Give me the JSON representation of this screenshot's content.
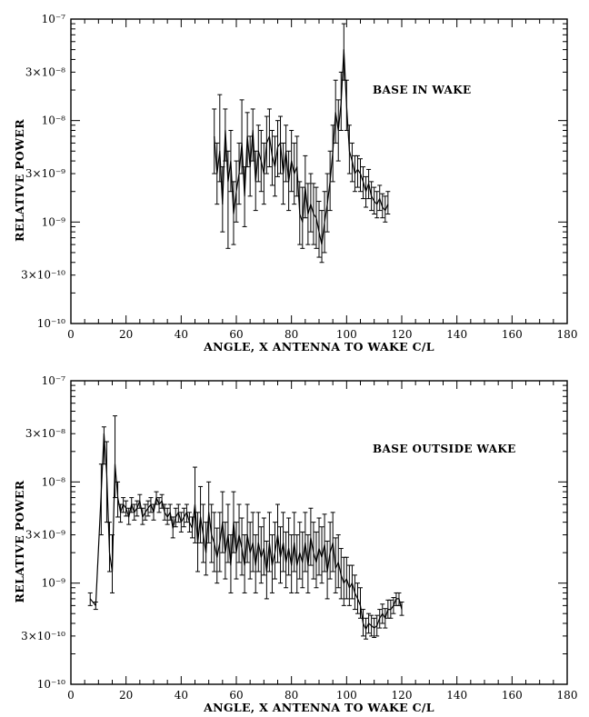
{
  "chart_data": [
    {
      "type": "line",
      "annotation": "BASE IN WAKE",
      "xlabel": "ANGLE, X ANTENNA TO WAKE C/L",
      "ylabel": "RELATIVE POWER",
      "xlim": [
        0,
        180
      ],
      "ylim": [
        1e-10,
        1e-07
      ],
      "yscale": "log",
      "x_ticks": [
        0,
        20,
        40,
        60,
        80,
        100,
        120,
        140,
        160,
        180
      ],
      "x_tick_labels": [
        "0",
        "20",
        "40",
        "60",
        "80",
        "100",
        "120",
        "140",
        "160",
        "180"
      ],
      "y_ticks": [
        1e-10,
        3e-10,
        1e-09,
        3e-09,
        1e-08,
        3e-08,
        1e-07
      ],
      "y_tick_labels": [
        "10⁻¹⁰",
        "3×10⁻¹⁰",
        "10⁻⁹",
        "3×10⁻⁹",
        "10⁻⁸",
        "3×10⁻⁸",
        "10⁻⁷"
      ],
      "grid": false,
      "series": [
        {
          "x": [
            52,
            53,
            54,
            55,
            56,
            57,
            58,
            59,
            60,
            61,
            62,
            63,
            64,
            65,
            66,
            67,
            68,
            69,
            70,
            71,
            72,
            73,
            74,
            75,
            76,
            77,
            78,
            79,
            80,
            81,
            82,
            83,
            84,
            85,
            86,
            87,
            88,
            89,
            90,
            91,
            92,
            93,
            94,
            95,
            96,
            97,
            98,
            99,
            100,
            101,
            102,
            103,
            104,
            105,
            106,
            107,
            108,
            109,
            110,
            111,
            112,
            113,
            114,
            115
          ],
          "y": [
            7e-09,
            3e-09,
            5e-09,
            1.5e-09,
            8e-09,
            2.5e-09,
            4e-09,
            1.2e-09,
            2e-09,
            3e-09,
            6e-09,
            1.8e-09,
            7e-09,
            3.5e-09,
            8e-09,
            2.5e-09,
            5e-09,
            4e-09,
            3e-09,
            6e-09,
            7e-09,
            4.5e-09,
            3.5e-09,
            5.5e-09,
            6e-09,
            3e-09,
            5e-09,
            2.5e-09,
            4e-09,
            3e-09,
            3.5e-09,
            1.2e-09,
            1e-09,
            2.2e-09,
            1.2e-09,
            1.5e-09,
            1.2e-09,
            1.1e-09,
            8e-10,
            6e-10,
            1e-09,
            1.5e-09,
            2.5e-09,
            5e-09,
            1.2e-08,
            8e-09,
            1.5e-08,
            5e-08,
            1.4e-08,
            5e-09,
            4e-09,
            3e-09,
            3.3e-09,
            3e-09,
            2.5e-09,
            2e-09,
            2.4e-09,
            1.8e-09,
            1.6e-09,
            1.5e-09,
            1.7e-09,
            1.4e-09,
            1.3e-09,
            1.5e-09
          ],
          "y_low": [
            3e-09,
            1.5e-09,
            2.5e-09,
            8e-10,
            4e-09,
            5.5e-10,
            2e-09,
            6e-10,
            1e-09,
            1.5e-09,
            3e-09,
            9e-10,
            3.5e-09,
            1.8e-09,
            4e-09,
            1.3e-09,
            2.5e-09,
            2e-09,
            1.5e-09,
            3e-09,
            3.5e-09,
            2.3e-09,
            1.8e-09,
            2.8e-09,
            3e-09,
            1.5e-09,
            2.5e-09,
            1.3e-09,
            2e-09,
            1.5e-09,
            1.8e-09,
            6e-10,
            5.5e-10,
            1.1e-09,
            6e-10,
            8e-10,
            6e-10,
            5.5e-10,
            4.5e-10,
            4e-10,
            5e-10,
            8e-10,
            1.3e-09,
            2.5e-09,
            6e-09,
            4e-09,
            8e-09,
            2.5e-08,
            8e-09,
            3e-09,
            2.5e-09,
            2e-09,
            2.2e-09,
            2e-09,
            1.7e-09,
            1.4e-09,
            1.7e-09,
            1.3e-09,
            1.2e-09,
            1.1e-09,
            1.3e-09,
            1.1e-09,
            1e-09,
            1.2e-09
          ],
          "y_high": [
            1.3e-08,
            6e-09,
            1.8e-08,
            3.5e-09,
            1.3e-08,
            5e-09,
            8e-09,
            2.5e-09,
            4e-09,
            6e-09,
            1.6e-08,
            3.5e-09,
            1.2e-08,
            7e-09,
            1.3e-08,
            5e-09,
            9e-09,
            8e-09,
            6e-09,
            1.1e-08,
            1.3e-08,
            8e-09,
            7e-09,
            1e-08,
            1.1e-08,
            6e-09,
            9e-09,
            5e-09,
            8e-09,
            6e-09,
            7e-09,
            2.5e-09,
            2.2e-09,
            4.5e-09,
            2.4e-09,
            3e-09,
            2.4e-09,
            2.2e-09,
            1.6e-09,
            1.3e-09,
            2e-09,
            3e-09,
            5e-09,
            9e-09,
            2.5e-08,
            1.6e-08,
            3e-08,
            9e-08,
            2.5e-08,
            9e-09,
            6e-09,
            4.5e-09,
            4.5e-09,
            4.2e-09,
            3.5e-09,
            2.8e-09,
            3.3e-09,
            2.5e-09,
            2.2e-09,
            2e-09,
            2.3e-09,
            1.9e-09,
            1.8e-09,
            2e-09
          ]
        }
      ]
    },
    {
      "type": "line",
      "annotation": "BASE OUTSIDE WAKE",
      "xlabel": "ANGLE, X ANTENNA TO WAKE C/L",
      "ylabel": "RELATIVE POWER",
      "xlim": [
        0,
        180
      ],
      "ylim": [
        1e-10,
        1e-07
      ],
      "yscale": "log",
      "x_ticks": [
        0,
        20,
        40,
        60,
        80,
        100,
        120,
        140,
        160,
        180
      ],
      "x_tick_labels": [
        "0",
        "20",
        "40",
        "60",
        "80",
        "100",
        "120",
        "140",
        "160",
        "180"
      ],
      "y_ticks": [
        1e-10,
        3e-10,
        1e-09,
        3e-09,
        1e-08,
        3e-08,
        1e-07
      ],
      "y_tick_labels": [
        "10⁻¹⁰",
        "3×10⁻¹⁰",
        "10⁻⁹",
        "3×10⁻⁹",
        "10⁻⁸",
        "3×10⁻⁸",
        "10⁻⁷"
      ],
      "grid": false,
      "series": [
        {
          "x": [
            7,
            9,
            11,
            12,
            13,
            14,
            15,
            16,
            17,
            18,
            19,
            20,
            21,
            22,
            23,
            24,
            25,
            26,
            27,
            28,
            29,
            30,
            31,
            32,
            33,
            34,
            35,
            36,
            37,
            38,
            39,
            40,
            41,
            42,
            43,
            44,
            45,
            46,
            47,
            48,
            49,
            50,
            51,
            52,
            53,
            54,
            55,
            56,
            57,
            58,
            59,
            60,
            61,
            62,
            63,
            64,
            65,
            66,
            67,
            68,
            69,
            70,
            71,
            72,
            73,
            74,
            75,
            76,
            77,
            78,
            79,
            80,
            81,
            82,
            83,
            84,
            85,
            86,
            87,
            88,
            89,
            90,
            91,
            92,
            93,
            94,
            95,
            96,
            97,
            98,
            99,
            100,
            101,
            102,
            103,
            104,
            105,
            106,
            107,
            108,
            109,
            110,
            111,
            112,
            113,
            114,
            115,
            116,
            117,
            118,
            119,
            120
          ],
          "y": [
            7e-10,
            6e-10,
            8e-09,
            3e-08,
            1.2e-08,
            2e-09,
            1.3e-09,
            1.5e-08,
            7e-09,
            5e-09,
            6e-09,
            5.5e-09,
            4.5e-09,
            6e-09,
            5e-09,
            5.5e-09,
            6.5e-09,
            4.5e-09,
            5e-09,
            5.5e-09,
            6e-09,
            5e-09,
            7e-09,
            6e-09,
            6.5e-09,
            5e-09,
            4.5e-09,
            5e-09,
            3.5e-09,
            4.5e-09,
            5e-09,
            4e-09,
            4.5e-09,
            5e-09,
            4e-09,
            3.5e-09,
            6e-09,
            2.5e-09,
            4.5e-09,
            3e-09,
            2e-09,
            5e-09,
            3e-09,
            2.5e-09,
            1.8e-09,
            2.5e-09,
            4e-09,
            2e-09,
            3e-09,
            1.5e-09,
            4e-09,
            2e-09,
            3e-09,
            2.2e-09,
            1.5e-09,
            3e-09,
            2e-09,
            2.5e-09,
            1.5e-09,
            2.5e-09,
            1.8e-09,
            2.2e-09,
            1.3e-09,
            2.5e-09,
            1.5e-09,
            2e-09,
            3e-09,
            1.8e-09,
            2.5e-09,
            1.6e-09,
            2.2e-09,
            1.5e-09,
            2.5e-09,
            1.5e-09,
            2e-09,
            1.6e-09,
            2.5e-09,
            1.5e-09,
            2.8e-09,
            2e-09,
            1.6e-09,
            2.2e-09,
            1.8e-09,
            2.4e-09,
            1.3e-09,
            2e-09,
            2.5e-09,
            1.4e-09,
            1.6e-09,
            1.2e-09,
            1e-09,
            1.1e-09,
            9e-10,
            1e-09,
            8e-10,
            7e-10,
            6e-10,
            4e-10,
            3.5e-10,
            4e-10,
            3.8e-10,
            3.6e-10,
            3.8e-10,
            4.5e-10,
            5e-10,
            4.5e-10,
            5.5e-10,
            5.5e-10,
            6e-10,
            7e-10,
            7e-10,
            5.5e-10
          ],
          "y_low": [
            6e-10,
            5.5e-10,
            3e-09,
            1.5e-08,
            4e-09,
            1.3e-09,
            8e-10,
            7e-09,
            4.5e-09,
            4e-09,
            5e-09,
            4.6e-09,
            3.8e-09,
            5e-09,
            4.2e-09,
            4.6e-09,
            5.5e-09,
            3.8e-09,
            4.2e-09,
            4.6e-09,
            5e-09,
            4.2e-09,
            6e-09,
            5e-09,
            5.5e-09,
            4.2e-09,
            3.8e-09,
            4.2e-09,
            2.8e-09,
            3.6e-09,
            4e-09,
            3.2e-09,
            3.6e-09,
            4e-09,
            3.2e-09,
            2.8e-09,
            2.5e-09,
            1.3e-09,
            2.5e-09,
            1.6e-09,
            1.2e-09,
            2.5e-09,
            1.6e-09,
            1.3e-09,
            1e-09,
            1.3e-09,
            2e-09,
            1.1e-09,
            1.6e-09,
            8e-10,
            2e-09,
            1.1e-09,
            1.6e-09,
            1.2e-09,
            8e-10,
            1.6e-09,
            1.1e-09,
            1.3e-09,
            8e-10,
            1.3e-09,
            1e-09,
            1.2e-09,
            7e-10,
            1.3e-09,
            8e-10,
            1.1e-09,
            1.6e-09,
            1e-09,
            1.3e-09,
            9e-10,
            1.2e-09,
            8e-10,
            1.3e-09,
            8e-10,
            1.1e-09,
            9e-10,
            1.3e-09,
            8e-10,
            1.5e-09,
            1.1e-09,
            9e-10,
            1.2e-09,
            1e-09,
            1.3e-09,
            7e-10,
            1.1e-09,
            1.3e-09,
            8e-10,
            9e-10,
            7e-10,
            6e-10,
            7e-10,
            6e-10,
            7e-10,
            5.5e-10,
            5e-10,
            4.5e-10,
            3e-10,
            2.8e-10,
            3.2e-10,
            3e-10,
            2.9e-10,
            3e-10,
            3.6e-10,
            4e-10,
            3.6e-10,
            4.5e-10,
            4.5e-10,
            5e-10,
            6e-10,
            6e-10,
            4.8e-10
          ],
          "y_high": [
            8e-10,
            6.5e-10,
            1.5e-08,
            3.5e-08,
            2.5e-08,
            4e-09,
            3e-09,
            4.5e-08,
            1e-08,
            6e-09,
            7e-09,
            6.5e-09,
            5.5e-09,
            7e-09,
            6e-09,
            6.5e-09,
            7.5e-09,
            5.5e-09,
            6e-09,
            6.5e-09,
            7e-09,
            6e-09,
            8e-09,
            7e-09,
            7.5e-09,
            6e-09,
            5.5e-09,
            6e-09,
            4.5e-09,
            5.5e-09,
            6e-09,
            5e-09,
            5.5e-09,
            6e-09,
            5e-09,
            4.5e-09,
            1.4e-08,
            5e-09,
            9e-09,
            6e-09,
            4e-09,
            1e-08,
            6e-09,
            5e-09,
            3.5e-09,
            5e-09,
            8e-09,
            4e-09,
            6e-09,
            3e-09,
            8e-09,
            4e-09,
            6e-09,
            4.4e-09,
            3e-09,
            6e-09,
            4e-09,
            5e-09,
            3e-09,
            5e-09,
            3.6e-09,
            4.4e-09,
            2.6e-09,
            5e-09,
            3e-09,
            4e-09,
            6e-09,
            3.6e-09,
            5e-09,
            3.2e-09,
            4.4e-09,
            3e-09,
            5e-09,
            3e-09,
            4e-09,
            3.2e-09,
            5e-09,
            3e-09,
            5.5e-09,
            4e-09,
            3.2e-09,
            4.4e-09,
            3.6e-09,
            4.8e-09,
            2.6e-09,
            4e-09,
            5e-09,
            2.8e-09,
            3e-09,
            2.2e-09,
            1.8e-09,
            1.8e-09,
            1.5e-09,
            1.5e-09,
            1.2e-09,
            1e-09,
            9e-10,
            5.5e-10,
            4.5e-10,
            5e-10,
            4.8e-10,
            4.5e-10,
            4.8e-10,
            5.5e-10,
            6.2e-10,
            5.6e-10,
            6.8e-10,
            6.8e-10,
            7.2e-10,
            8e-10,
            8e-10,
            6.5e-10
          ]
        }
      ]
    }
  ]
}
